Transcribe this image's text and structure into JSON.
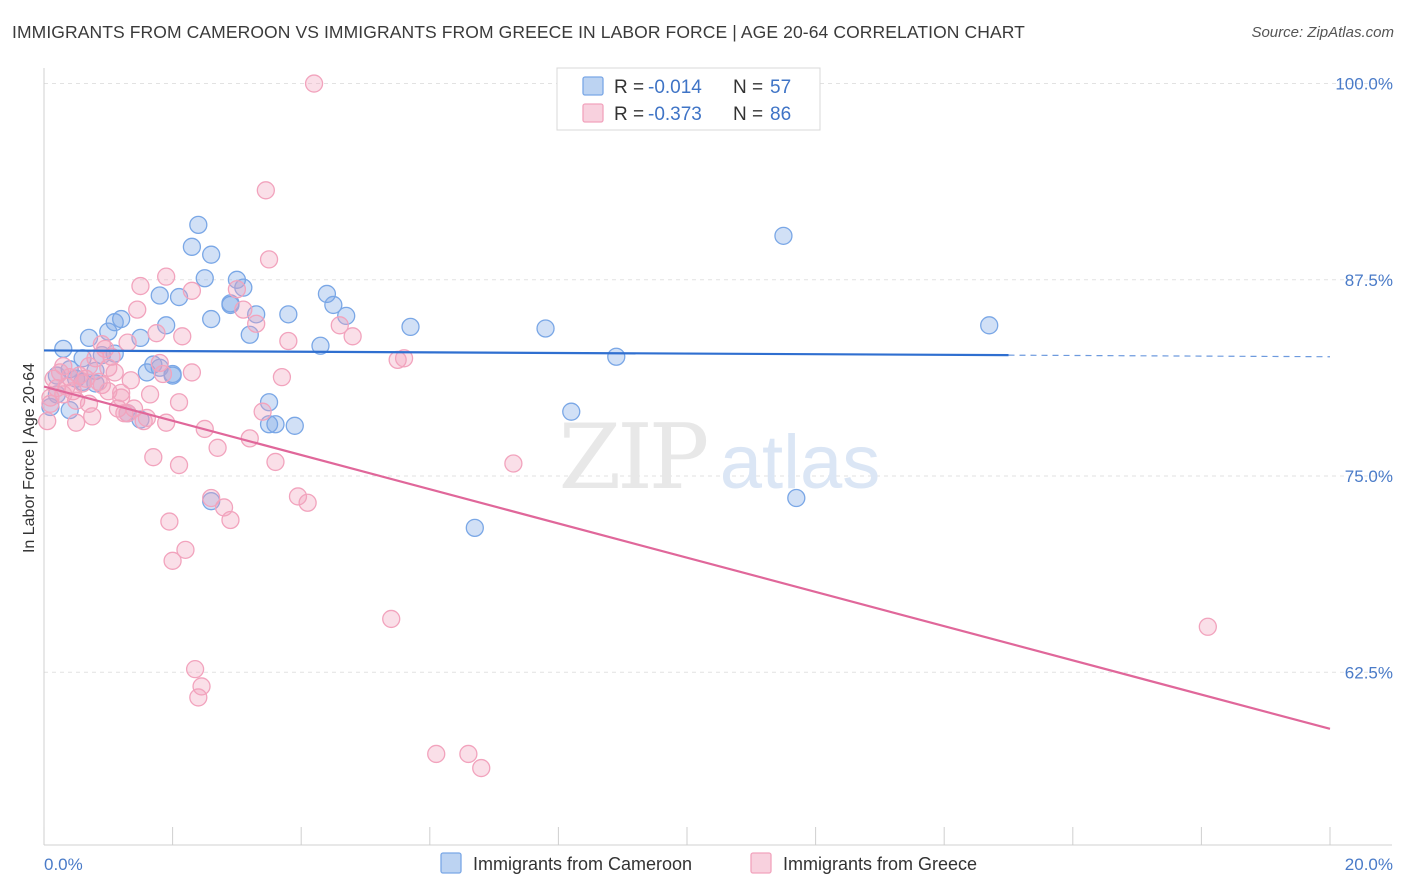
{
  "title": "IMMIGRANTS FROM CAMEROON VS IMMIGRANTS FROM GREECE IN LABOR FORCE | AGE 20-64 CORRELATION CHART",
  "source": "Source: ZipAtlas.com",
  "watermark": {
    "zip": "ZIP",
    "atlas": "atlas"
  },
  "legend": {
    "rows": [
      {
        "r_label": "R =",
        "r_value": "-0.014",
        "n_label": "N =",
        "n_value": "57",
        "color": "#7aa7e6"
      },
      {
        "r_label": "R =",
        "r_value": "-0.373",
        "n_label": "N =",
        "n_value": "86",
        "color": "#f2a3bd"
      }
    ]
  },
  "chart_data": {
    "type": "scatter",
    "title": "IMMIGRANTS FROM CAMEROON VS IMMIGRANTS FROM GREECE IN LABOR FORCE | AGE 20-64 CORRELATION CHART",
    "xlabel": "",
    "ylabel": "In Labor Force | Age 20-64",
    "xlim": [
      0,
      20
    ],
    "ylim": [
      51.5,
      101.5
    ],
    "x_tick_labels": [
      "0.0%",
      "20.0%"
    ],
    "x_tick_values": [
      0,
      20
    ],
    "y_ticks": [
      {
        "value": 100,
        "label": "100.0%"
      },
      {
        "value": 87.5,
        "label": "87.5%"
      },
      {
        "value": 75,
        "label": "75.0%"
      },
      {
        "value": 62.5,
        "label": "62.5%"
      }
    ],
    "grid": true,
    "legend_position": "top-center",
    "series": [
      {
        "name": "Immigrants from Cameroon",
        "color": "#7aa7e6",
        "trend": {
          "x": [
            0,
            15
          ],
          "y": [
            83.0,
            82.7
          ],
          "dashed_to": [
            20,
            82.6
          ]
        },
        "points": [
          [
            0.1,
            79.4
          ],
          [
            0.2,
            81.4
          ],
          [
            0.3,
            83.1
          ],
          [
            0.4,
            81.8
          ],
          [
            0.5,
            81.2
          ],
          [
            0.6,
            82.5
          ],
          [
            0.7,
            83.8
          ],
          [
            0.8,
            81.7
          ],
          [
            0.9,
            82.7
          ],
          [
            1.0,
            84.2
          ],
          [
            1.1,
            84.8
          ],
          [
            1.2,
            85.0
          ],
          [
            1.3,
            79.0
          ],
          [
            1.5,
            83.8
          ],
          [
            1.6,
            81.6
          ],
          [
            1.7,
            82.1
          ],
          [
            1.8,
            81.9
          ],
          [
            1.8,
            86.5
          ],
          [
            1.9,
            84.6
          ],
          [
            2.0,
            81.5
          ],
          [
            2.1,
            86.4
          ],
          [
            2.0,
            81.4
          ],
          [
            2.3,
            89.6
          ],
          [
            2.4,
            91.0
          ],
          [
            2.5,
            87.6
          ],
          [
            2.6,
            85.0
          ],
          [
            2.6,
            73.4
          ],
          [
            2.6,
            89.1
          ],
          [
            2.9,
            85.9
          ],
          [
            2.9,
            86.0
          ],
          [
            3.0,
            87.5
          ],
          [
            3.1,
            87.0
          ],
          [
            3.2,
            84.0
          ],
          [
            3.3,
            85.3
          ],
          [
            3.5,
            78.3
          ],
          [
            3.5,
            79.7
          ],
          [
            3.6,
            78.3
          ],
          [
            3.8,
            85.3
          ],
          [
            3.9,
            78.2
          ],
          [
            4.3,
            83.3
          ],
          [
            4.4,
            86.6
          ],
          [
            4.5,
            85.9
          ],
          [
            4.7,
            85.2
          ],
          [
            5.7,
            84.5
          ],
          [
            6.7,
            71.7
          ],
          [
            7.8,
            84.4
          ],
          [
            8.2,
            79.1
          ],
          [
            8.9,
            82.6
          ],
          [
            11.5,
            90.3
          ],
          [
            11.7,
            73.6
          ],
          [
            14.7,
            84.6
          ],
          [
            0.4,
            79.2
          ],
          [
            0.6,
            81.0
          ],
          [
            1.1,
            82.8
          ],
          [
            1.5,
            78.6
          ],
          [
            0.2,
            80.2
          ],
          [
            0.8,
            80.9
          ]
        ]
      },
      {
        "name": "Immigrants from Greece",
        "color": "#f2a3bd",
        "trend": {
          "x": [
            0,
            20
          ],
          "y": [
            80.7,
            58.9
          ]
        },
        "points": [
          [
            0.05,
            78.5
          ],
          [
            0.1,
            79.6
          ],
          [
            0.1,
            80.0
          ],
          [
            0.15,
            81.2
          ],
          [
            0.2,
            80.6
          ],
          [
            0.25,
            81.6
          ],
          [
            0.3,
            80.2
          ],
          [
            0.35,
            80.7
          ],
          [
            0.4,
            81.3
          ],
          [
            0.45,
            80.4
          ],
          [
            0.5,
            79.8
          ],
          [
            0.55,
            81.4
          ],
          [
            0.6,
            80.9
          ],
          [
            0.65,
            81.2
          ],
          [
            0.7,
            79.6
          ],
          [
            0.75,
            78.8
          ],
          [
            0.8,
            82.5
          ],
          [
            0.85,
            81.0
          ],
          [
            0.9,
            83.4
          ],
          [
            0.95,
            83.1
          ],
          [
            1.0,
            80.4
          ],
          [
            1.05,
            82.6
          ],
          [
            1.1,
            81.6
          ],
          [
            1.15,
            79.3
          ],
          [
            1.2,
            80.0
          ],
          [
            1.25,
            79.0
          ],
          [
            1.3,
            83.5
          ],
          [
            1.35,
            81.1
          ],
          [
            1.4,
            79.3
          ],
          [
            1.45,
            85.6
          ],
          [
            1.5,
            87.1
          ],
          [
            1.55,
            78.5
          ],
          [
            1.6,
            78.7
          ],
          [
            1.65,
            80.2
          ],
          [
            1.7,
            76.2
          ],
          [
            1.75,
            84.1
          ],
          [
            1.8,
            82.2
          ],
          [
            1.85,
            81.5
          ],
          [
            1.9,
            78.4
          ],
          [
            1.95,
            72.1
          ],
          [
            2.0,
            69.6
          ],
          [
            2.1,
            75.7
          ],
          [
            2.15,
            83.9
          ],
          [
            2.2,
            70.3
          ],
          [
            2.3,
            81.6
          ],
          [
            2.35,
            62.7
          ],
          [
            2.4,
            60.9
          ],
          [
            2.45,
            61.6
          ],
          [
            2.5,
            78.0
          ],
          [
            2.6,
            73.6
          ],
          [
            2.7,
            76.8
          ],
          [
            2.8,
            73.0
          ],
          [
            2.9,
            72.2
          ],
          [
            3.0,
            86.9
          ],
          [
            3.1,
            85.6
          ],
          [
            3.2,
            77.4
          ],
          [
            3.3,
            84.7
          ],
          [
            3.4,
            79.1
          ],
          [
            3.45,
            93.2
          ],
          [
            3.5,
            88.8
          ],
          [
            3.6,
            75.9
          ],
          [
            3.7,
            81.3
          ],
          [
            3.8,
            83.6
          ],
          [
            3.95,
            73.7
          ],
          [
            4.1,
            73.3
          ],
          [
            4.2,
            100.0
          ],
          [
            4.6,
            84.6
          ],
          [
            4.8,
            83.9
          ],
          [
            5.4,
            65.9
          ],
          [
            5.5,
            82.4
          ],
          [
            5.6,
            82.5
          ],
          [
            6.1,
            57.3
          ],
          [
            6.6,
            57.3
          ],
          [
            6.8,
            56.4
          ],
          [
            7.3,
            75.8
          ],
          [
            18.1,
            65.4
          ],
          [
            1.9,
            87.7
          ],
          [
            2.3,
            86.8
          ],
          [
            0.5,
            78.4
          ],
          [
            1.0,
            81.9
          ],
          [
            0.7,
            82.0
          ],
          [
            0.3,
            82.0
          ],
          [
            1.3,
            79.0
          ],
          [
            2.1,
            79.7
          ],
          [
            1.2,
            80.3
          ],
          [
            0.9,
            80.8
          ]
        ]
      }
    ]
  },
  "bottom_legend": [
    {
      "label": "Immigrants from Cameroon",
      "color": "#7aa7e6"
    },
    {
      "label": "Immigrants from Greece",
      "color": "#f2a3bd"
    }
  ]
}
